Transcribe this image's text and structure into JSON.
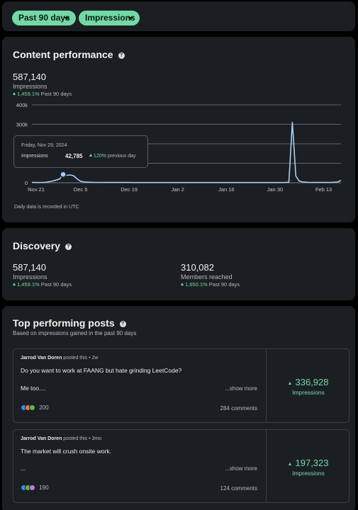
{
  "filters": {
    "range_label": "Past 90 days",
    "metric_label": "Impressions"
  },
  "content_performance": {
    "title": "Content performance",
    "total": "587,140",
    "total_label": "Impressions",
    "change": "1,459.1%",
    "change_suffix": "Past 90 days",
    "footnote": "Daily data is recorded in UTC",
    "tooltip": {
      "date": "Friday, Nov 29, 2024",
      "label": "Impressions",
      "value": "42,785",
      "change": "120%",
      "change_suffix": "previous day"
    }
  },
  "chart_data": {
    "type": "line",
    "ylabel": "",
    "xlabel": "",
    "y_ticks": [
      "400k",
      "300k",
      "200k",
      "100k",
      "0"
    ],
    "ylim": [
      0,
      400000
    ],
    "x_tick_labels": [
      "Nov 21",
      "Dec 5",
      "Dec 19",
      "Jan 2",
      "Jan 16",
      "Jan 30",
      "Feb 13"
    ],
    "x_range_days": [
      0,
      89
    ],
    "series": [
      {
        "values": [
          2000,
          1500,
          1200,
          1500,
          2500,
          5000,
          9000,
          14000,
          19400,
          42785,
          38000,
          40000,
          36000,
          20000,
          8000,
          4000,
          3000,
          2500,
          2000,
          1800,
          1700,
          1600,
          1500,
          1500,
          1400,
          1400,
          1300,
          1300,
          1300,
          1200,
          1200,
          1200,
          1200,
          1100,
          1100,
          1100,
          1100,
          1000,
          1000,
          1000,
          1000,
          1000,
          1000,
          1000,
          1000,
          1000,
          1000,
          1000,
          1000,
          1000,
          1000,
          1000,
          1000,
          1000,
          1000,
          1000,
          1000,
          1000,
          1000,
          1000,
          1000,
          1000,
          1000,
          1000,
          1000,
          1000,
          1000,
          1000,
          1000,
          1000,
          1000,
          1000,
          1000,
          1500,
          3000,
          310000,
          35000,
          8000,
          4000,
          2500,
          2000,
          1800,
          1600,
          1500,
          1400,
          1300,
          1500,
          2500,
          4000,
          12000
        ]
      }
    ],
    "grid": true,
    "line_color": "#a9cdf2"
  },
  "discovery": {
    "title": "Discovery",
    "impressions": {
      "value": "587,140",
      "label": "Impressions",
      "change": "1,459.1%",
      "change_suffix": "Past 90 days"
    },
    "members": {
      "value": "310,082",
      "label": "Members reached",
      "change": "1,650.1%",
      "change_suffix": "Past 90 days"
    }
  },
  "top_posts": {
    "title": "Top performing posts",
    "subtitle": "Based on impressions gained in the past 90 days",
    "posts": [
      {
        "author": "Jarrod Van Doren",
        "meta": " posted this • 2w",
        "line1": "Do you want to work at FAANG but hate grinding LeetCode?",
        "line2": "Me too....",
        "show_more": "...show more",
        "reactions": "200",
        "comments": "284 comments",
        "impressions": "336,928",
        "impressions_label": "Impressions"
      },
      {
        "author": "Jarrod Van Doren",
        "meta": " posted this • 3mo",
        "line1": "The market will crush onsite work.",
        "line2": "...",
        "show_more": "...show more",
        "reactions": "190",
        "comments": "124 comments",
        "impressions": "197,323",
        "impressions_label": "Impressions"
      }
    ]
  },
  "colors": {
    "accent_green": "#74d8a6",
    "card_bg": "#1b1f23",
    "page_bg": "#000000"
  }
}
